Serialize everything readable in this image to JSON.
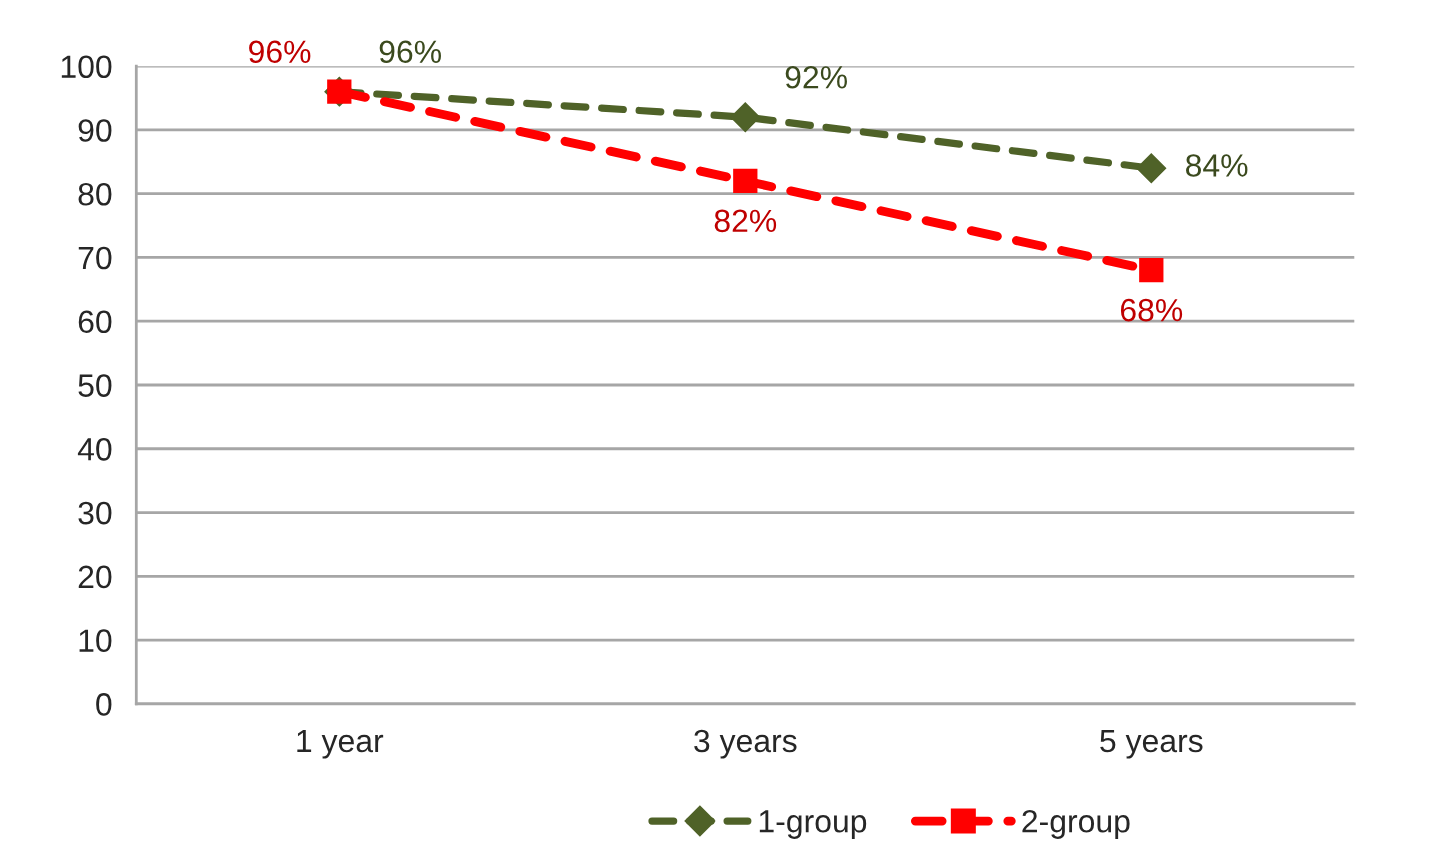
{
  "chart_data": {
    "type": "line",
    "categories": [
      "1 year",
      "3 years",
      "5 years"
    ],
    "series": [
      {
        "name": "1-group",
        "color": "#4f6228",
        "values": [
          96,
          92,
          84
        ],
        "value_labels": [
          "96%",
          "92%",
          "84%"
        ],
        "marker": "diamond",
        "line_style": "dashed"
      },
      {
        "name": "2-group",
        "color": "#ff0000",
        "values": [
          96,
          82,
          68
        ],
        "value_labels": [
          "96%",
          "82%",
          "68%"
        ],
        "marker": "square",
        "line_style": "dashed"
      }
    ],
    "ylim": [
      0,
      100
    ],
    "yticks": [
      0,
      10,
      20,
      30,
      40,
      50,
      60,
      70,
      80,
      90,
      100
    ],
    "grid": "y",
    "legend": "bottom"
  }
}
